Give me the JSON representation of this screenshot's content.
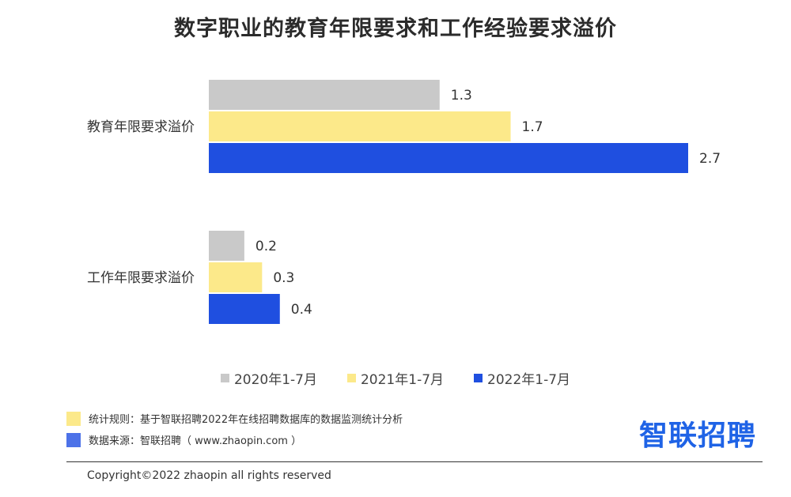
{
  "chart_data": {
    "type": "bar",
    "orientation": "horizontal",
    "title": "数字职业的教育年限要求和工作经验要求溢价",
    "categories": [
      "教育年限要求溢价",
      "工作年限要求溢价"
    ],
    "series": [
      {
        "name": "2020年1-7月",
        "values": [
          1.3,
          0.2
        ],
        "color": "#c9c9c9"
      },
      {
        "name": "2021年1-7月",
        "values": [
          1.7,
          0.3
        ],
        "color": "#fce98a"
      },
      {
        "name": "2022年1-7月",
        "values": [
          2.7,
          0.4
        ],
        "color": "#1f4fe0"
      }
    ],
    "xlim": [
      0,
      2.7
    ],
    "grid": false,
    "legend_position": "bottom"
  },
  "notes": [
    {
      "text": "统计规则：基于智联招聘2022年在线招聘数据库的数据监测统计分析",
      "color": "#fce98a"
    },
    {
      "text": "数据来源：智联招聘（ www.zhaopin.com ）",
      "color": "#4d72e8"
    }
  ],
  "logo": "智联招聘",
  "copyright": "Copyright©2022 zhaopin all rights reserved"
}
